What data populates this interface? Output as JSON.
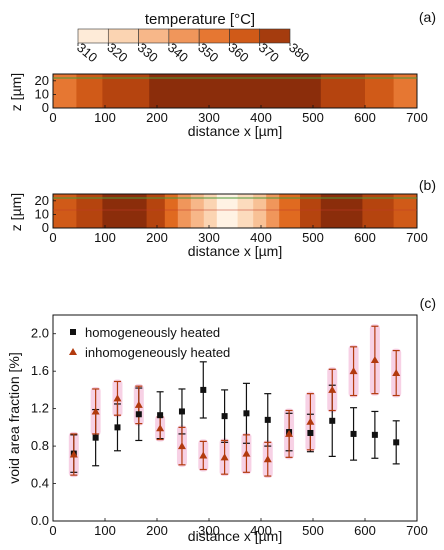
{
  "colorbar": {
    "title": "temperature [°C]",
    "ticks": [
      "310",
      "320",
      "330",
      "340",
      "350",
      "360",
      "370",
      "380"
    ],
    "colors": [
      "#fff6ec",
      "#fde0c4",
      "#f9c79f",
      "#f4a772",
      "#ec8444",
      "#e06a20",
      "#bf4a10",
      "#8b2d0b"
    ]
  },
  "chart_data": [
    {
      "type": "heatmap",
      "panel_label": "(a)",
      "xlabel": "distance x [µm]",
      "ylabel": "z [µm]",
      "xlim": [
        0,
        700
      ],
      "ylim": [
        0,
        25
      ],
      "xticks": [
        "0",
        "100",
        "200",
        "300",
        "400",
        "500",
        "600",
        "700"
      ],
      "yticks": [
        "0",
        "10",
        "20"
      ],
      "bands": [
        {
          "x0": 0,
          "x1": 45,
          "temperature": 355
        },
        {
          "x0": 45,
          "x1": 95,
          "temperature": 365
        },
        {
          "x0": 95,
          "x1": 185,
          "temperature": 372
        },
        {
          "x0": 185,
          "x1": 515,
          "temperature": 380
        },
        {
          "x0": 515,
          "x1": 600,
          "temperature": 372
        },
        {
          "x0": 600,
          "x1": 655,
          "temperature": 365
        },
        {
          "x0": 655,
          "x1": 700,
          "temperature": 355
        }
      ]
    },
    {
      "type": "heatmap",
      "panel_label": "(b)",
      "xlabel": "distance x [µm]",
      "ylabel": "z [µm]",
      "xlim": [
        0,
        700
      ],
      "ylim": [
        0,
        25
      ],
      "xticks": [
        "0",
        "100",
        "200",
        "300",
        "400",
        "500",
        "600",
        "700"
      ],
      "yticks": [
        "0",
        "10",
        "20"
      ],
      "bands": [
        {
          "x0": 0,
          "x1": 45,
          "temperature": 365
        },
        {
          "x0": 45,
          "x1": 95,
          "temperature": 372
        },
        {
          "x0": 95,
          "x1": 180,
          "temperature": 380
        },
        {
          "x0": 180,
          "x1": 215,
          "temperature": 372
        },
        {
          "x0": 215,
          "x1": 240,
          "temperature": 360
        },
        {
          "x0": 240,
          "x1": 265,
          "temperature": 345
        },
        {
          "x0": 265,
          "x1": 290,
          "temperature": 335
        },
        {
          "x0": 290,
          "x1": 315,
          "temperature": 325
        },
        {
          "x0": 315,
          "x1": 355,
          "temperature": 312
        },
        {
          "x0": 355,
          "x1": 385,
          "temperature": 322
        },
        {
          "x0": 385,
          "x1": 410,
          "temperature": 332
        },
        {
          "x0": 410,
          "x1": 435,
          "temperature": 345
        },
        {
          "x0": 435,
          "x1": 475,
          "temperature": 360
        },
        {
          "x0": 475,
          "x1": 515,
          "temperature": 372
        },
        {
          "x0": 515,
          "x1": 595,
          "temperature": 380
        },
        {
          "x0": 595,
          "x1": 655,
          "temperature": 372
        },
        {
          "x0": 655,
          "x1": 700,
          "temperature": 365
        }
      ]
    },
    {
      "type": "scatter",
      "panel_label": "(c)",
      "xlabel": "distance x [µm]",
      "ylabel": "void area fraction [%]",
      "xlim": [
        0,
        700
      ],
      "ylim": [
        0,
        2.2
      ],
      "xticks": [
        "0",
        "100",
        "200",
        "300",
        "400",
        "500",
        "600",
        "700"
      ],
      "yticks": [
        "0.0",
        "0.4",
        "0.8",
        "1.2",
        "1.6",
        "2.0"
      ],
      "legend_position": "top-left",
      "series": [
        {
          "name": "homogeneously heated",
          "marker": "square",
          "color": "#111111",
          "x": [
            40,
            82,
            124,
            165,
            206,
            248,
            289,
            330,
            372,
            413,
            454,
            495,
            537,
            578,
            619,
            660
          ],
          "y": [
            0.72,
            0.89,
            1.0,
            1.14,
            1.13,
            1.17,
            1.4,
            1.12,
            1.15,
            1.08,
            0.95,
            0.94,
            1.07,
            0.93,
            0.92,
            0.84
          ],
          "err": [
            0.2,
            0.3,
            0.25,
            0.28,
            0.25,
            0.24,
            0.3,
            0.28,
            0.32,
            0.28,
            0.2,
            0.2,
            0.38,
            0.28,
            0.25,
            0.23
          ]
        },
        {
          "name": "inhomogeneously heated",
          "marker": "triangle",
          "color": "#b23a0e",
          "x": [
            40,
            82,
            124,
            165,
            206,
            248,
            289,
            330,
            372,
            413,
            454,
            495,
            537,
            578,
            619,
            660
          ],
          "y": [
            0.71,
            1.17,
            1.31,
            1.24,
            0.99,
            0.8,
            0.7,
            0.68,
            0.72,
            0.66,
            0.93,
            1.06,
            1.4,
            1.6,
            1.72,
            1.58
          ],
          "err": [
            0.22,
            0.24,
            0.18,
            0.2,
            0.12,
            0.2,
            0.15,
            0.18,
            0.2,
            0.18,
            0.25,
            0.3,
            0.22,
            0.26,
            0.36,
            0.24
          ]
        }
      ]
    }
  ]
}
